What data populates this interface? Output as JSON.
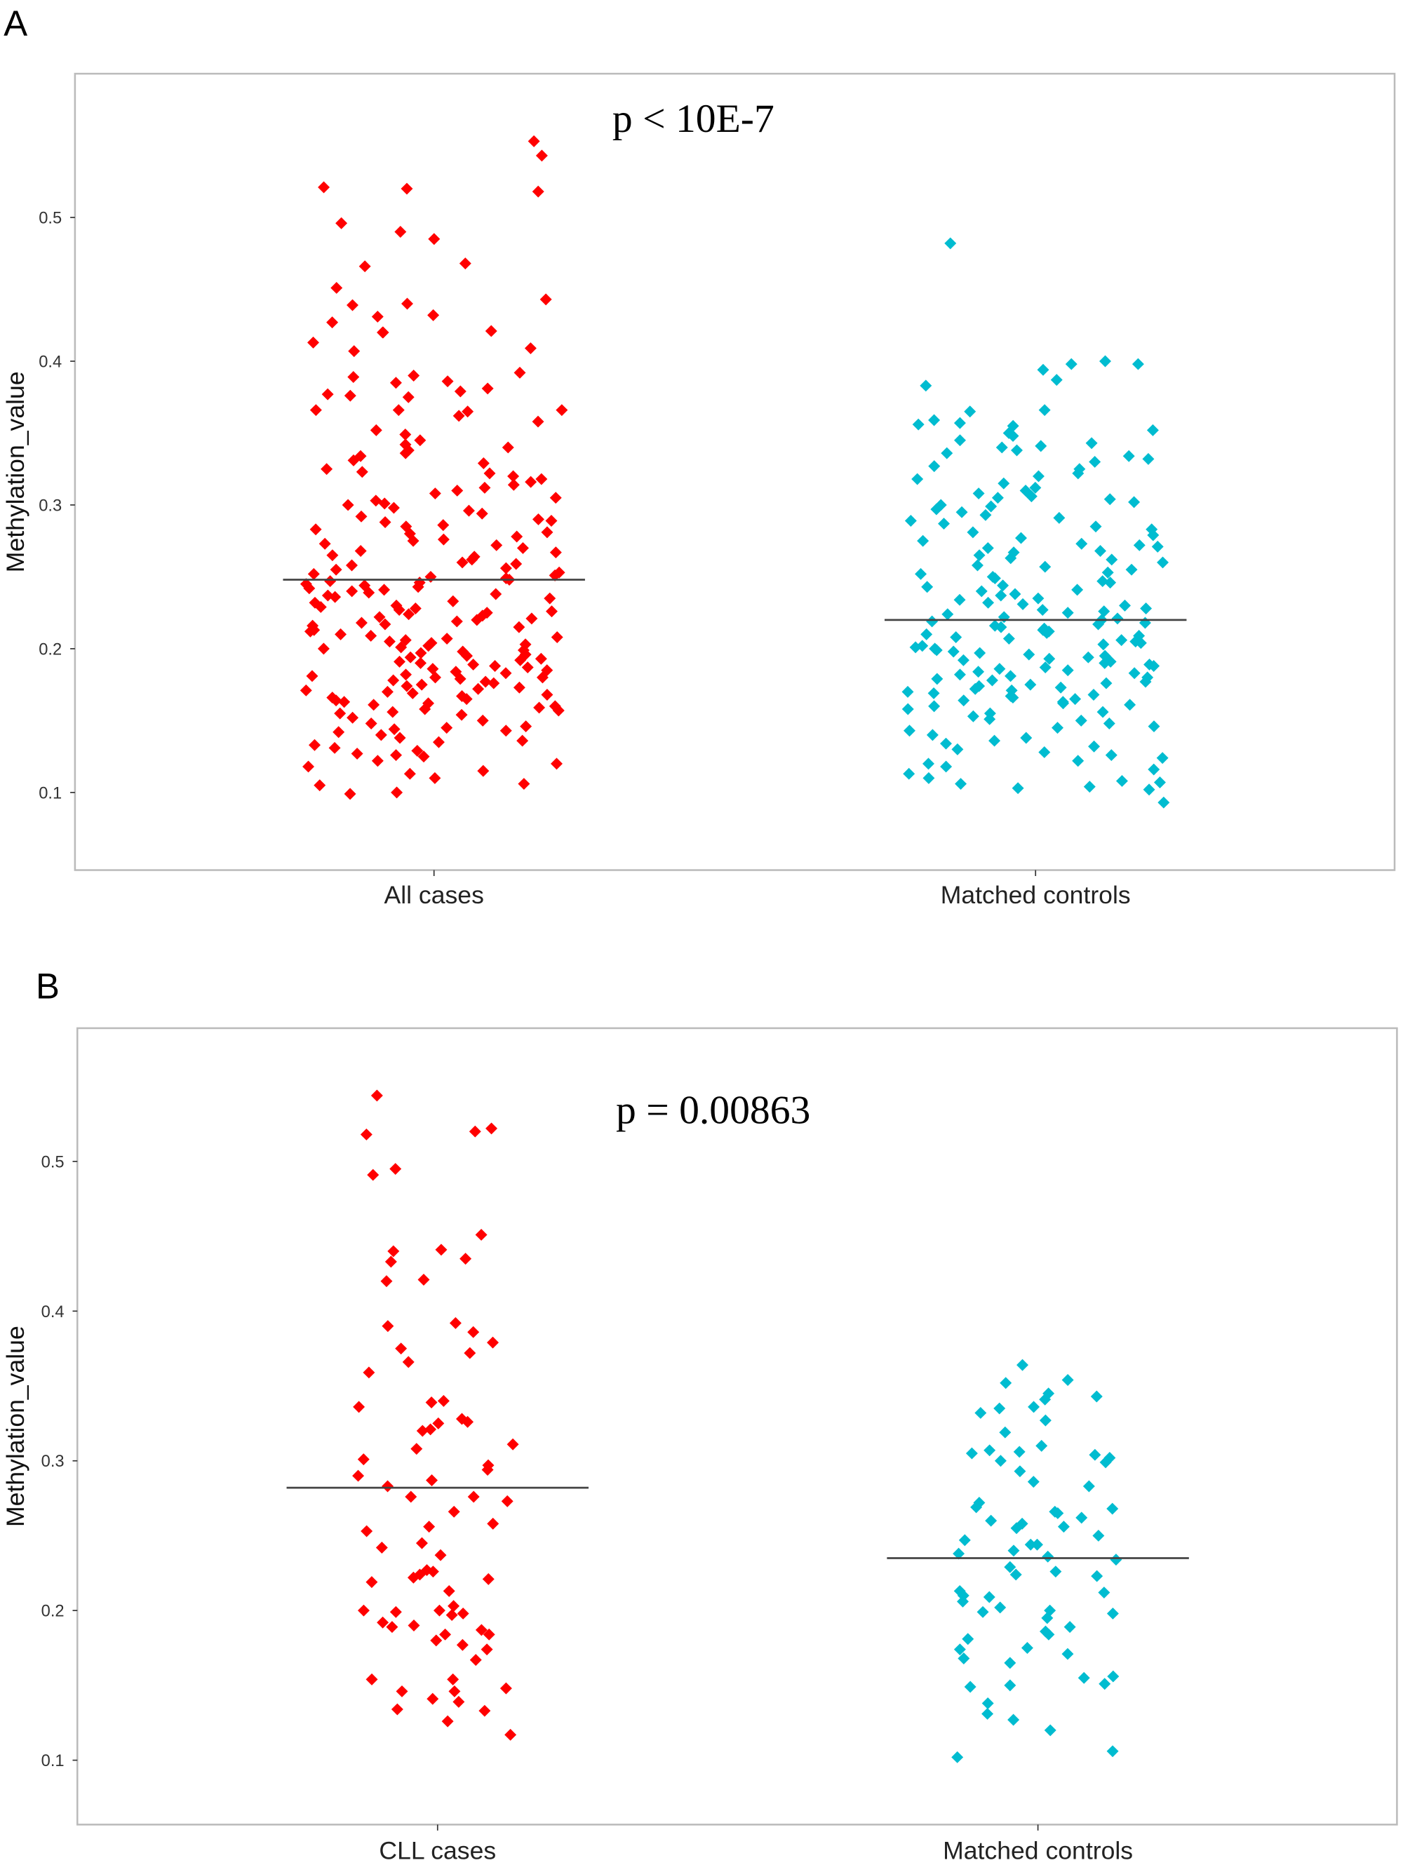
{
  "chart_data": [
    {
      "panel_label": "A",
      "type": "scatter",
      "subtype": "jittered strip plot with group mean lines",
      "annotation": "p < 10E-7",
      "xlabel": "",
      "ylabel": "Methylation_value",
      "categories": [
        "All cases",
        "Matched controls"
      ],
      "ylim": [
        0.046,
        0.6
      ],
      "yticks": [
        "0.1",
        "0.2",
        "0.3",
        "0.4",
        "0.5"
      ],
      "grid": false,
      "series": [
        {
          "category": "All cases",
          "color": "#FF0000",
          "mean": 0.248,
          "values": [
            0.553,
            0.543,
            0.521,
            0.52,
            0.518,
            0.496,
            0.49,
            0.485,
            0.468,
            0.466,
            0.451,
            0.443,
            0.44,
            0.439,
            0.432,
            0.431,
            0.427,
            0.421,
            0.42,
            0.42,
            0.413,
            0.409,
            0.407,
            0.392,
            0.39,
            0.389,
            0.386,
            0.385,
            0.381,
            0.379,
            0.377,
            0.376,
            0.375,
            0.366,
            0.366,
            0.366,
            0.365,
            0.362,
            0.358,
            0.352,
            0.349,
            0.345,
            0.342,
            0.34,
            0.338,
            0.336,
            0.334,
            0.331,
            0.329,
            0.325,
            0.323,
            0.322,
            0.32,
            0.318,
            0.316,
            0.314,
            0.312,
            0.31,
            0.308,
            0.305,
            0.303,
            0.301,
            0.3,
            0.298,
            0.296,
            0.294,
            0.292,
            0.29,
            0.289,
            0.288,
            0.286,
            0.285,
            0.283,
            0.281,
            0.28,
            0.278,
            0.276,
            0.275,
            0.273,
            0.272,
            0.27,
            0.268,
            0.267,
            0.265,
            0.264,
            0.262,
            0.26,
            0.259,
            0.258,
            0.256,
            0.255,
            0.253,
            0.252,
            0.251,
            0.25,
            0.249,
            0.248,
            0.247,
            0.246,
            0.245,
            0.244,
            0.243,
            0.242,
            0.241,
            0.24,
            0.239,
            0.238,
            0.237,
            0.236,
            0.235,
            0.233,
            0.232,
            0.23,
            0.229,
            0.228,
            0.227,
            0.226,
            0.225,
            0.224,
            0.223,
            0.222,
            0.221,
            0.22,
            0.219,
            0.218,
            0.217,
            0.216,
            0.215,
            0.213,
            0.212,
            0.21,
            0.209,
            0.208,
            0.207,
            0.206,
            0.205,
            0.204,
            0.203,
            0.202,
            0.201,
            0.2,
            0.199,
            0.198,
            0.197,
            0.196,
            0.195,
            0.194,
            0.193,
            0.192,
            0.191,
            0.19,
            0.189,
            0.188,
            0.187,
            0.186,
            0.185,
            0.184,
            0.183,
            0.182,
            0.181,
            0.18,
            0.18,
            0.179,
            0.178,
            0.177,
            0.176,
            0.175,
            0.174,
            0.173,
            0.172,
            0.171,
            0.17,
            0.169,
            0.168,
            0.167,
            0.166,
            0.165,
            0.164,
            0.163,
            0.162,
            0.161,
            0.16,
            0.159,
            0.158,
            0.157,
            0.156,
            0.155,
            0.154,
            0.152,
            0.15,
            0.148,
            0.146,
            0.145,
            0.144,
            0.143,
            0.142,
            0.14,
            0.138,
            0.136,
            0.135,
            0.133,
            0.131,
            0.129,
            0.127,
            0.126,
            0.125,
            0.122,
            0.12,
            0.118,
            0.115,
            0.113,
            0.11,
            0.106,
            0.105,
            0.1,
            0.099
          ]
        },
        {
          "category": "Matched controls",
          "color": "#00BCD0",
          "mean": 0.22,
          "values": [
            0.482,
            0.4,
            0.398,
            0.398,
            0.394,
            0.387,
            0.383,
            0.366,
            0.365,
            0.359,
            0.357,
            0.356,
            0.355,
            0.352,
            0.35,
            0.348,
            0.345,
            0.343,
            0.341,
            0.34,
            0.338,
            0.336,
            0.334,
            0.332,
            0.33,
            0.327,
            0.325,
            0.322,
            0.32,
            0.318,
            0.315,
            0.312,
            0.31,
            0.308,
            0.306,
            0.305,
            0.304,
            0.302,
            0.3,
            0.299,
            0.297,
            0.295,
            0.293,
            0.291,
            0.289,
            0.287,
            0.285,
            0.283,
            0.281,
            0.279,
            0.277,
            0.275,
            0.273,
            0.272,
            0.271,
            0.27,
            0.268,
            0.267,
            0.265,
            0.263,
            0.262,
            0.26,
            0.258,
            0.257,
            0.255,
            0.253,
            0.252,
            0.25,
            0.249,
            0.247,
            0.246,
            0.244,
            0.243,
            0.241,
            0.24,
            0.238,
            0.237,
            0.235,
            0.234,
            0.232,
            0.231,
            0.23,
            0.228,
            0.227,
            0.226,
            0.225,
            0.224,
            0.222,
            0.221,
            0.22,
            0.219,
            0.218,
            0.217,
            0.216,
            0.215,
            0.214,
            0.213,
            0.212,
            0.211,
            0.21,
            0.209,
            0.208,
            0.207,
            0.206,
            0.205,
            0.204,
            0.203,
            0.202,
            0.201,
            0.2,
            0.199,
            0.198,
            0.197,
            0.196,
            0.195,
            0.194,
            0.193,
            0.192,
            0.191,
            0.19,
            0.189,
            0.188,
            0.187,
            0.186,
            0.185,
            0.184,
            0.183,
            0.182,
            0.181,
            0.18,
            0.179,
            0.178,
            0.177,
            0.176,
            0.175,
            0.174,
            0.173,
            0.172,
            0.171,
            0.17,
            0.169,
            0.168,
            0.167,
            0.166,
            0.165,
            0.164,
            0.163,
            0.162,
            0.161,
            0.16,
            0.158,
            0.156,
            0.155,
            0.153,
            0.151,
            0.15,
            0.148,
            0.146,
            0.145,
            0.143,
            0.14,
            0.138,
            0.136,
            0.134,
            0.132,
            0.13,
            0.128,
            0.126,
            0.124,
            0.122,
            0.12,
            0.118,
            0.116,
            0.113,
            0.11,
            0.108,
            0.107,
            0.106,
            0.104,
            0.103,
            0.102,
            0.093
          ]
        }
      ]
    },
    {
      "panel_label": "B",
      "type": "scatter",
      "subtype": "jittered strip plot with group mean lines",
      "annotation": "p = 0.00863",
      "xlabel": "",
      "ylabel": "Methylation_value",
      "categories": [
        "CLL cases",
        "Matched controls"
      ],
      "ylim": [
        0.057,
        0.589
      ],
      "yticks": [
        "0.1",
        "0.2",
        "0.3",
        "0.4",
        "0.5"
      ],
      "grid": false,
      "series": [
        {
          "category": "CLL cases",
          "color": "#FF0000",
          "mean": 0.282,
          "values": [
            0.544,
            0.522,
            0.52,
            0.518,
            0.495,
            0.491,
            0.451,
            0.44,
            0.441,
            0.435,
            0.433,
            0.421,
            0.42,
            0.392,
            0.39,
            0.386,
            0.379,
            0.375,
            0.372,
            0.366,
            0.359,
            0.34,
            0.339,
            0.336,
            0.328,
            0.326,
            0.325,
            0.321,
            0.32,
            0.311,
            0.308,
            0.301,
            0.297,
            0.294,
            0.29,
            0.287,
            0.283,
            0.276,
            0.276,
            0.273,
            0.266,
            0.258,
            0.256,
            0.253,
            0.245,
            0.242,
            0.237,
            0.227,
            0.226,
            0.224,
            0.222,
            0.221,
            0.219,
            0.213,
            0.203,
            0.2,
            0.2,
            0.199,
            0.198,
            0.197,
            0.192,
            0.19,
            0.189,
            0.187,
            0.184,
            0.184,
            0.18,
            0.177,
            0.174,
            0.167,
            0.154,
            0.154,
            0.148,
            0.146,
            0.146,
            0.141,
            0.139,
            0.134,
            0.133,
            0.126,
            0.117
          ]
        },
        {
          "category": "Matched controls",
          "color": "#00BCD0",
          "mean": 0.235,
          "values": [
            0.364,
            0.354,
            0.352,
            0.345,
            0.343,
            0.341,
            0.336,
            0.335,
            0.332,
            0.327,
            0.319,
            0.31,
            0.307,
            0.306,
            0.305,
            0.304,
            0.302,
            0.3,
            0.299,
            0.293,
            0.286,
            0.283,
            0.272,
            0.269,
            0.268,
            0.266,
            0.265,
            0.262,
            0.26,
            0.258,
            0.256,
            0.255,
            0.25,
            0.247,
            0.244,
            0.244,
            0.24,
            0.238,
            0.236,
            0.234,
            0.229,
            0.226,
            0.224,
            0.223,
            0.213,
            0.212,
            0.21,
            0.209,
            0.206,
            0.202,
            0.2,
            0.199,
            0.198,
            0.195,
            0.189,
            0.186,
            0.184,
            0.181,
            0.175,
            0.174,
            0.171,
            0.168,
            0.165,
            0.156,
            0.155,
            0.151,
            0.15,
            0.149,
            0.138,
            0.131,
            0.127,
            0.12,
            0.106,
            0.102
          ]
        }
      ]
    }
  ]
}
